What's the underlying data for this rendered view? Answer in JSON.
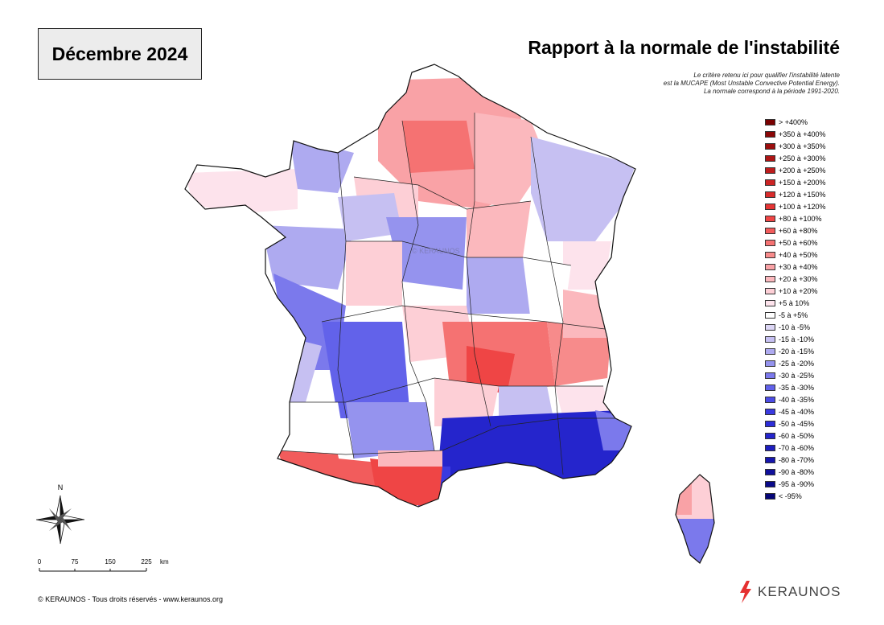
{
  "header": {
    "date": "Décembre 2024",
    "title": "Rapport à la normale de l'instabilité",
    "subtitle_lines": [
      "Le critère retenu ici pour qualifier l'instabilité latente",
      "est la MUCAPE (Most Unstable Convective Potential Energy).",
      "La normale correspond à la période 1991-2020."
    ]
  },
  "legend": {
    "items": [
      {
        "label": "> +400%",
        "color": "#7a0000"
      },
      {
        "label": "+350 à +400%",
        "color": "#8b0707"
      },
      {
        "label": "+300 à +350%",
        "color": "#9c0e0e"
      },
      {
        "label": "+250 à +300%",
        "color": "#ad1515"
      },
      {
        "label": "+200 à +250%",
        "color": "#bd1d1d"
      },
      {
        "label": "+150 à +200%",
        "color": "#cc2424"
      },
      {
        "label": "+120 à +150%",
        "color": "#d92c2c"
      },
      {
        "label": "+100 à +120%",
        "color": "#e53535"
      },
      {
        "label": "+80 à +100%",
        "color": "#ef4545"
      },
      {
        "label": "+60 à +80%",
        "color": "#f25c5c"
      },
      {
        "label": "+50 à +60%",
        "color": "#f57272"
      },
      {
        "label": "+40 à +50%",
        "color": "#f78b8b"
      },
      {
        "label": "+30 à +40%",
        "color": "#f9a2a6"
      },
      {
        "label": "+20 à +30%",
        "color": "#fbb8bd"
      },
      {
        "label": "+10 à +20%",
        "color": "#fdcfd6"
      },
      {
        "label": "+5 à 10%",
        "color": "#fde3ec"
      },
      {
        "label": "-5 à +5%",
        "color": "#ffffff"
      },
      {
        "label": "-10 à -5%",
        "color": "#dcd6f5"
      },
      {
        "label": "-15 à -10%",
        "color": "#c6c0f2"
      },
      {
        "label": "-20 à -15%",
        "color": "#aeaaf0"
      },
      {
        "label": "-25 à -20%",
        "color": "#9593ee"
      },
      {
        "label": "-30 à -25%",
        "color": "#7b79ec"
      },
      {
        "label": "-35 à -30%",
        "color": "#6262ea"
      },
      {
        "label": "-40 à -35%",
        "color": "#4c4ce6"
      },
      {
        "label": "-45 à -40%",
        "color": "#3a3ae0"
      },
      {
        "label": "-50 à -45%",
        "color": "#2d2dd8"
      },
      {
        "label": "-60 à -50%",
        "color": "#2525cc"
      },
      {
        "label": "-70 à -60%",
        "color": "#1e1ebe"
      },
      {
        "label": "-80 à -70%",
        "color": "#1717ae"
      },
      {
        "label": "-90 à -80%",
        "color": "#10109c"
      },
      {
        "label": "-95 à -90%",
        "color": "#0a0a8a"
      },
      {
        "label": "< -95%",
        "color": "#050578"
      }
    ]
  },
  "map": {
    "watermark": "© KERAUNOS"
  },
  "compass": {
    "north_label": "N"
  },
  "scale": {
    "ticks": [
      "0",
      "75",
      "150",
      "225"
    ],
    "unit": "km"
  },
  "footer": {
    "copyright": "© KERAUNOS - Tous droits réservés - www.keraunos.org",
    "logo_text": "KERAUNOS"
  }
}
